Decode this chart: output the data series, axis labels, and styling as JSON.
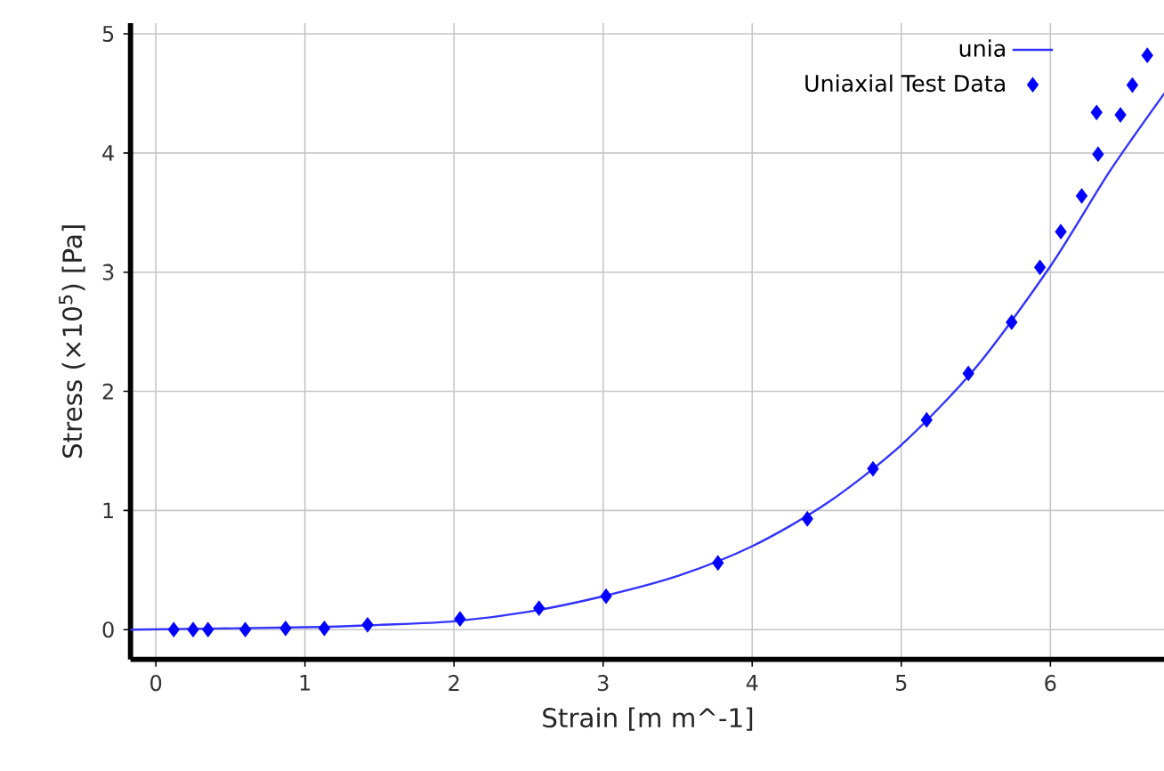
{
  "chart_data": {
    "type": "scatter",
    "xlabel": "Strain  [m m^-1]",
    "ylabel": "Stress  (×10$^{5}$)  [Pa]",
    "xlim": [
      -0.17,
      6.77
    ],
    "ylim": [
      -0.25,
      5.09
    ],
    "xticks": [
      0,
      1,
      2,
      3,
      4,
      5,
      6
    ],
    "yticks": [
      0,
      1,
      2,
      3,
      4,
      5
    ],
    "grid": true,
    "legend": "top right",
    "series": [
      {
        "name": "unia",
        "type": "line",
        "color": "#3333ff",
        "marker": "none",
        "line_style": "solid",
        "x": [
          -0.17,
          1,
          1.5,
          2,
          2.5,
          3,
          3.5,
          4,
          4.5,
          5,
          5.5,
          6,
          6.4,
          6.77
        ],
        "values": [
          0,
          0.02,
          0.04,
          0.07,
          0.15,
          0.28,
          0.45,
          0.7,
          1.06,
          1.55,
          2.2,
          3.05,
          3.85,
          4.51
        ]
      },
      {
        "name": "Uniaxial Test Data",
        "color": "#0000ff",
        "marker": "diamond",
        "x": [
          0.12,
          0.25,
          0.35,
          0.6,
          0.87,
          1.13,
          1.42,
          2.04,
          2.57,
          3.02,
          3.77,
          4.37,
          4.81,
          5.17,
          5.45,
          5.74,
          5.93,
          6.07,
          6.21,
          6.32,
          6.31,
          6.47,
          6.55,
          6.65
        ],
        "values": [
          0,
          0,
          0,
          0,
          0.01,
          0.01,
          0.04,
          0.09,
          0.18,
          0.28,
          0.56,
          0.93,
          1.35,
          1.76,
          2.15,
          2.58,
          3.04,
          3.34,
          3.64,
          3.99,
          4.34,
          4.32,
          4.57,
          4.82
        ]
      }
    ]
  }
}
